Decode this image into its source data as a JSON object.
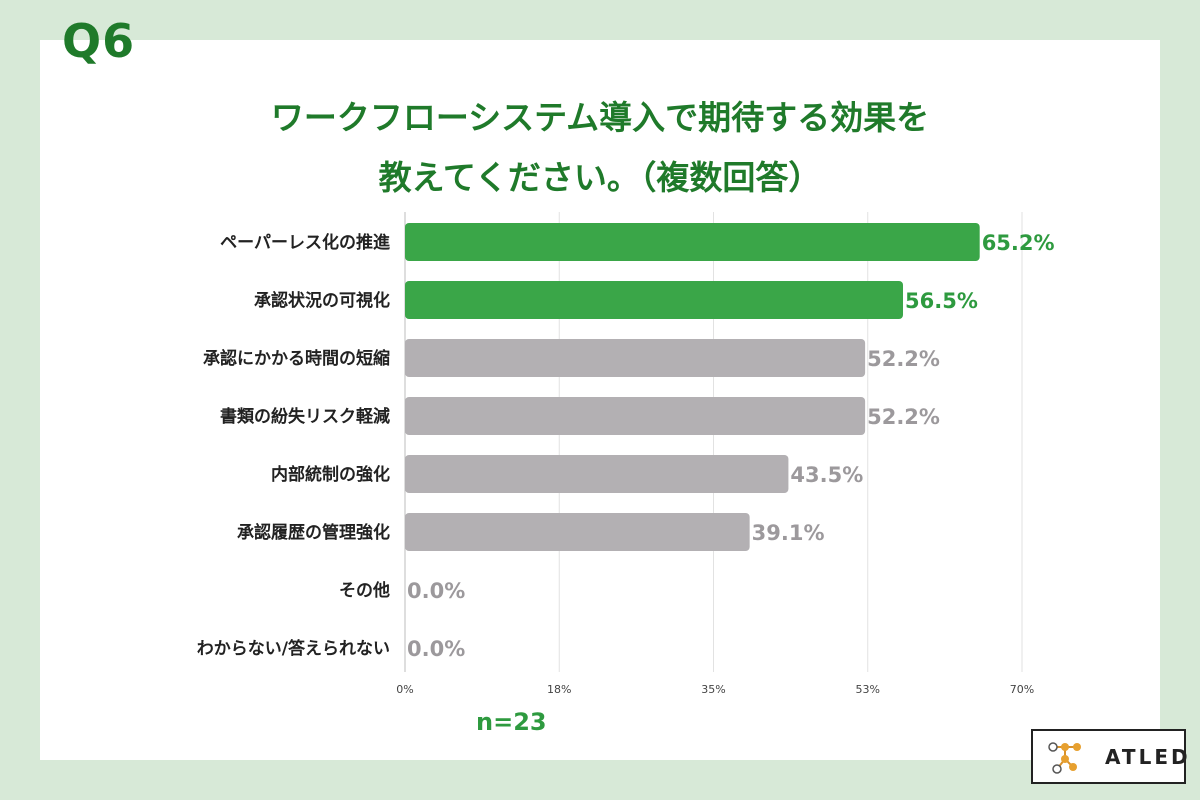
{
  "header": {
    "question": "Q6",
    "title_line1": "ワークフローシステム導入で期待する効果を",
    "title_line2": "教えてください。（複数回答）"
  },
  "footer": {
    "sample_size": "n=23",
    "logo_text": "ATLED"
  },
  "colors": {
    "background": "#d7e9d7",
    "title_green": "#1f7a2a",
    "highlight_bar": "#3aa648",
    "other_bar": "#b3b0b3",
    "highlight_label": "#2e9a3f",
    "other_label": "#9c999c"
  },
  "chart_data": {
    "type": "bar",
    "orientation": "horizontal",
    "categories": [
      "ペーパーレス化の推進",
      "承認状況の可視化",
      "承認にかかる時間の短縮",
      "書類の紛失リスク軽減",
      "内部統制の強化",
      "承認履歴の管理強化",
      "その他",
      "わからない/答えられない"
    ],
    "values": [
      65.2,
      56.5,
      52.2,
      52.2,
      43.5,
      39.1,
      0.0,
      0.0
    ],
    "value_labels": [
      "65.2%",
      "56.5%",
      "52.2%",
      "52.2%",
      "43.5%",
      "39.1%",
      "0.0%",
      "0.0%"
    ],
    "highlighted": [
      true,
      true,
      false,
      false,
      false,
      false,
      false,
      false
    ],
    "x_ticks": [
      0,
      17.5,
      35,
      52.5,
      70
    ],
    "x_tick_labels": [
      "0%",
      "18%",
      "35%",
      "53%",
      "70%"
    ],
    "xlim": [
      0,
      70
    ],
    "grid": true,
    "xlabel": "",
    "ylabel": ""
  }
}
